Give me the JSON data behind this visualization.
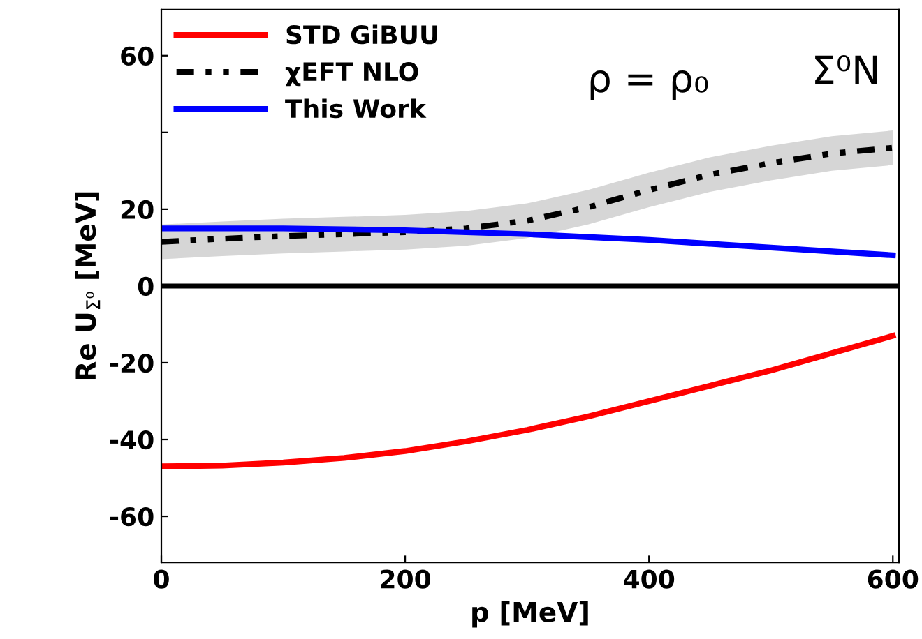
{
  "chart_data": {
    "type": "line",
    "xlabel": "p [MeV]",
    "ylabel": "Re U$_{Σ⁰}$ [MeV]",
    "xlim": [
      0,
      605
    ],
    "ylim": [
      -72,
      72
    ],
    "xticks": [
      0,
      200,
      400,
      600
    ],
    "yticks": [
      -60,
      -40,
      -20,
      0,
      20,
      {
        "value": 40,
        "label": null
      },
      60
    ],
    "grid": false,
    "legend": "top left",
    "ref_lines": [
      {
        "axis": "y",
        "value": 0,
        "color": "#000000"
      }
    ],
    "annotations": [
      "ρ = ρ₀",
      "Σ⁰N"
    ],
    "series": [
      {
        "name": "STD GiBUU",
        "color": "#ff0000",
        "line_style": "solid",
        "x": [
          0,
          50,
          100,
          150,
          200,
          250,
          300,
          350,
          400,
          450,
          500,
          550,
          600
        ],
        "values": [
          -47,
          -46.8,
          -46,
          -44.8,
          -43,
          -40.5,
          -37.5,
          -34,
          -30,
          -26,
          -22,
          -17.5,
          -13
        ]
      },
      {
        "name": "χEFT NLO",
        "color": "#000000",
        "line_style": "dashdot",
        "x": [
          0,
          50,
          100,
          150,
          200,
          250,
          300,
          350,
          400,
          450,
          500,
          550,
          600
        ],
        "values": [
          11.5,
          12.3,
          13,
          13.5,
          14,
          15,
          17,
          20.5,
          25,
          29,
          32,
          34.5,
          36
        ],
        "lower": [
          7,
          7.8,
          8.5,
          9,
          9.5,
          10.5,
          12.5,
          16,
          20.5,
          24.5,
          27.5,
          30,
          31.5
        ],
        "upper": [
          16,
          16.8,
          17.5,
          18,
          18.5,
          19.5,
          21.5,
          25,
          29.5,
          33.5,
          36.5,
          39,
          40.5
        ]
      },
      {
        "name": "This Work",
        "color": "#0000ff",
        "line_style": "solid",
        "x": [
          0,
          100,
          200,
          300,
          400,
          500,
          600
        ],
        "values": [
          15,
          15,
          14.5,
          13.5,
          12,
          10,
          8
        ]
      }
    ]
  }
}
